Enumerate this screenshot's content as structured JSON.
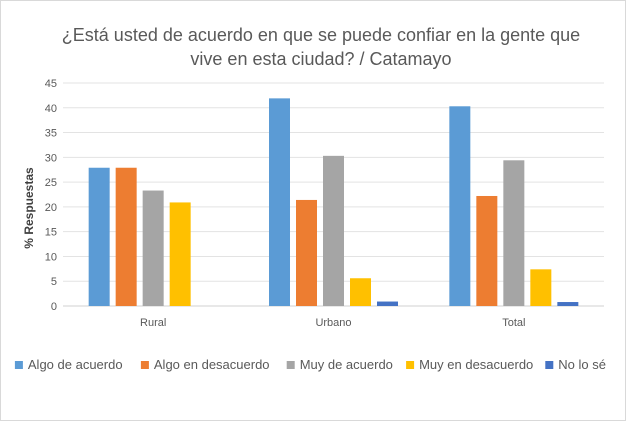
{
  "chart_data": {
    "type": "bar",
    "title_line1": "¿Está usted de acuerdo en que se puede confiar en la gente que",
    "title_line2": "vive en esta ciudad? / Catamayo",
    "xlabel": "",
    "ylabel": "% Respuestas",
    "ylim": [
      0,
      45
    ],
    "yticks": [
      "0",
      "5",
      "10",
      "15",
      "20",
      "25",
      "30",
      "35",
      "40",
      "45"
    ],
    "grid": true,
    "legend_position": "bottom",
    "categories": [
      "Rural",
      "Urbano",
      "Total"
    ],
    "series": [
      {
        "name": "Algo de acuerdo",
        "color": "#5b9bd5",
        "values": [
          27.9,
          41.9,
          40.3
        ]
      },
      {
        "name": "Algo en desacuerdo",
        "color": "#ed7d31",
        "values": [
          27.9,
          21.4,
          22.2
        ]
      },
      {
        "name": "Muy de acuerdo",
        "color": "#a5a5a5",
        "values": [
          23.3,
          30.3,
          29.4
        ]
      },
      {
        "name": "Muy en desacuerdo",
        "color": "#ffc000",
        "values": [
          20.9,
          5.6,
          7.4
        ]
      },
      {
        "name": "No lo sé",
        "color": "#4472c4",
        "values": [
          0,
          0.9,
          0.8
        ]
      }
    ]
  }
}
